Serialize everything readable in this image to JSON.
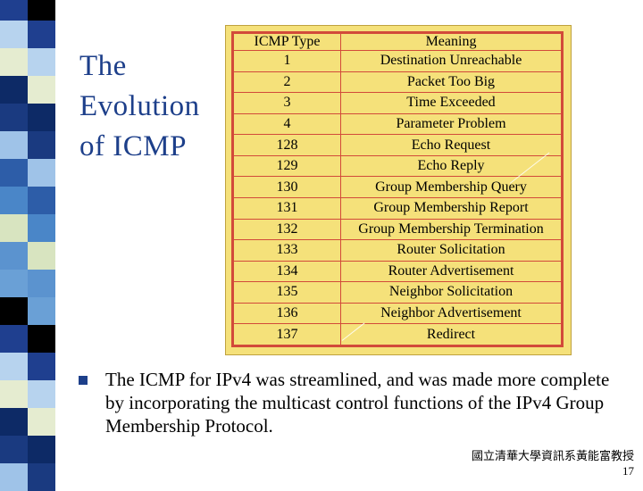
{
  "slide": {
    "title_lines": [
      "The",
      "Evolution",
      "of ICMP"
    ],
    "table": {
      "headers": [
        "ICMP Type",
        "Meaning"
      ],
      "rows": [
        [
          "1",
          "Destination Unreachable"
        ],
        [
          "2",
          "Packet Too Big"
        ],
        [
          "3",
          "Time Exceeded"
        ],
        [
          "4",
          "Parameter Problem"
        ],
        [
          "128",
          "Echo Request"
        ],
        [
          "129",
          "Echo Reply"
        ],
        [
          "130",
          "Group Membership Query"
        ],
        [
          "131",
          "Group Membership Report"
        ],
        [
          "132",
          "Group Membership Termination"
        ],
        [
          "133",
          "Router Solicitation"
        ],
        [
          "134",
          "Router Advertisement"
        ],
        [
          "135",
          "Neighbor Solicitation"
        ],
        [
          "136",
          "Neighbor Advertisement"
        ],
        [
          "137",
          "Redirect"
        ]
      ]
    },
    "bullet": {
      "icon": "square-bullet-icon",
      "text": "The ICMP for IPv4 was streamlined, and was made more complete by incorporating the multicast control functions of the IPv4 Group Membership Protocol."
    },
    "footer": {
      "author": "國立清華大學資訊系黃能富教授",
      "page_number": "17"
    }
  },
  "colors": {
    "title": "#1d3f8a",
    "table_background": "#f5e17a",
    "table_lines": "#d24a3a"
  }
}
